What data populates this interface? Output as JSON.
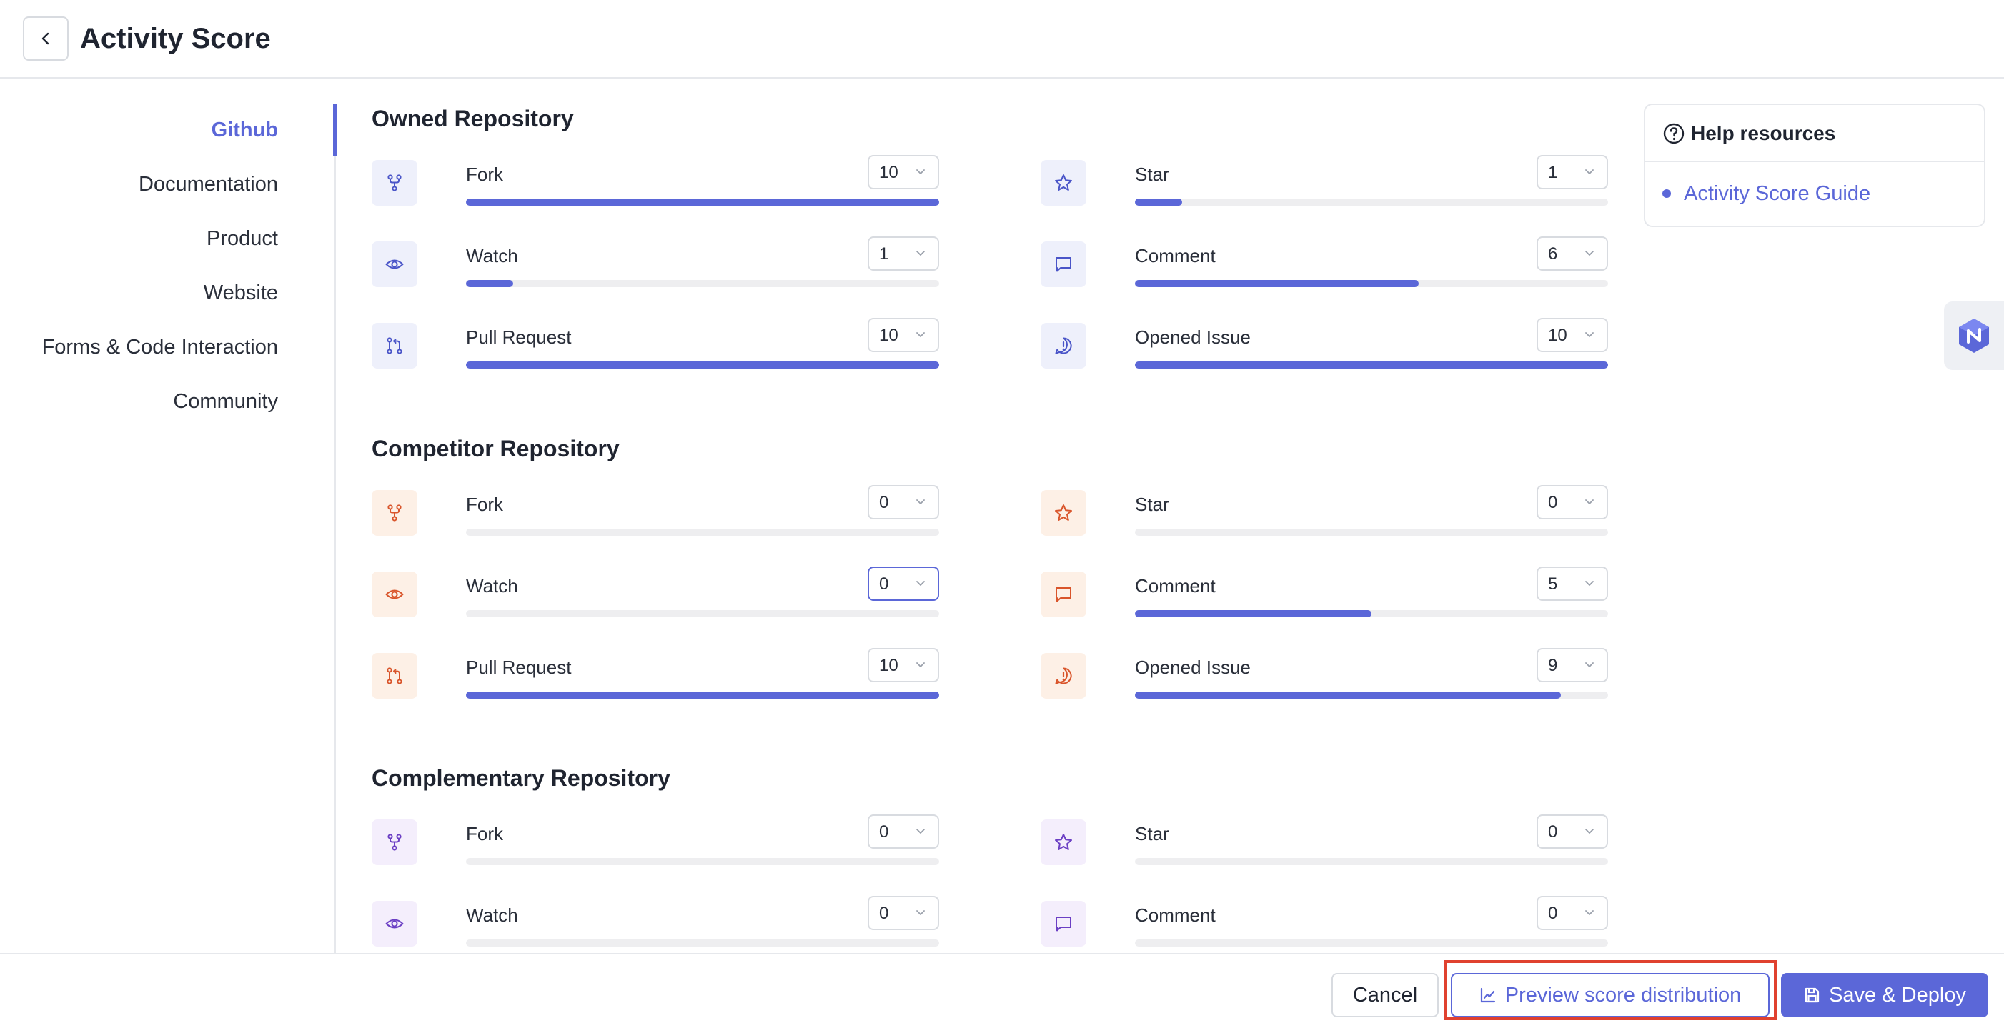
{
  "header": {
    "title": "Activity Score",
    "back_icon": "chevron-left-icon"
  },
  "sidebar": {
    "items": [
      {
        "label": "Github",
        "active": true
      },
      {
        "label": "Documentation",
        "active": false
      },
      {
        "label": "Product",
        "active": false
      },
      {
        "label": "Website",
        "active": false
      },
      {
        "label": "Forms & Code Interaction",
        "active": false
      },
      {
        "label": "Community",
        "active": false
      }
    ]
  },
  "score_max": 10,
  "sections": [
    {
      "title": "Owned Repository",
      "tone": "blue",
      "metrics": [
        {
          "label": "Fork",
          "value": 10,
          "icon": "fork-icon"
        },
        {
          "label": "Star",
          "value": 1,
          "icon": "star-icon"
        },
        {
          "label": "Watch",
          "value": 1,
          "icon": "eye-icon"
        },
        {
          "label": "Comment",
          "value": 6,
          "icon": "comment-icon"
        },
        {
          "label": "Pull Request",
          "value": 10,
          "icon": "pull-request-icon"
        },
        {
          "label": "Opened Issue",
          "value": 10,
          "icon": "alert-icon"
        }
      ]
    },
    {
      "title": "Competitor Repository",
      "tone": "orange",
      "metrics": [
        {
          "label": "Fork",
          "value": 0,
          "icon": "fork-icon"
        },
        {
          "label": "Star",
          "value": 0,
          "icon": "star-icon"
        },
        {
          "label": "Watch",
          "value": 0,
          "icon": "eye-icon",
          "focused": true
        },
        {
          "label": "Comment",
          "value": 5,
          "icon": "comment-icon"
        },
        {
          "label": "Pull Request",
          "value": 10,
          "icon": "pull-request-icon"
        },
        {
          "label": "Opened Issue",
          "value": 9,
          "icon": "alert-icon"
        }
      ]
    },
    {
      "title": "Complementary Repository",
      "tone": "purple",
      "metrics": [
        {
          "label": "Fork",
          "value": 0,
          "icon": "fork-icon"
        },
        {
          "label": "Star",
          "value": 0,
          "icon": "star-icon"
        },
        {
          "label": "Watch",
          "value": 0,
          "icon": "eye-icon"
        },
        {
          "label": "Comment",
          "value": 0,
          "icon": "comment-icon"
        }
      ]
    }
  ],
  "tones": {
    "blue": {
      "bg": "#eef0fb",
      "fg": "#4a55c8"
    },
    "orange": {
      "bg": "#fdf0e6",
      "fg": "#d9552b"
    },
    "purple": {
      "bg": "#f4eefc",
      "fg": "#6b3fc4"
    }
  },
  "help": {
    "title": "Help resources",
    "links": [
      {
        "label": "Activity Score Guide"
      }
    ]
  },
  "footer": {
    "cancel_label": "Cancel",
    "preview_label": "Preview score distribution",
    "save_label": "Save & Deploy"
  },
  "colors": {
    "accent": "#5b67d8",
    "highlight": "#e0412f",
    "track": "#eeeef0"
  }
}
